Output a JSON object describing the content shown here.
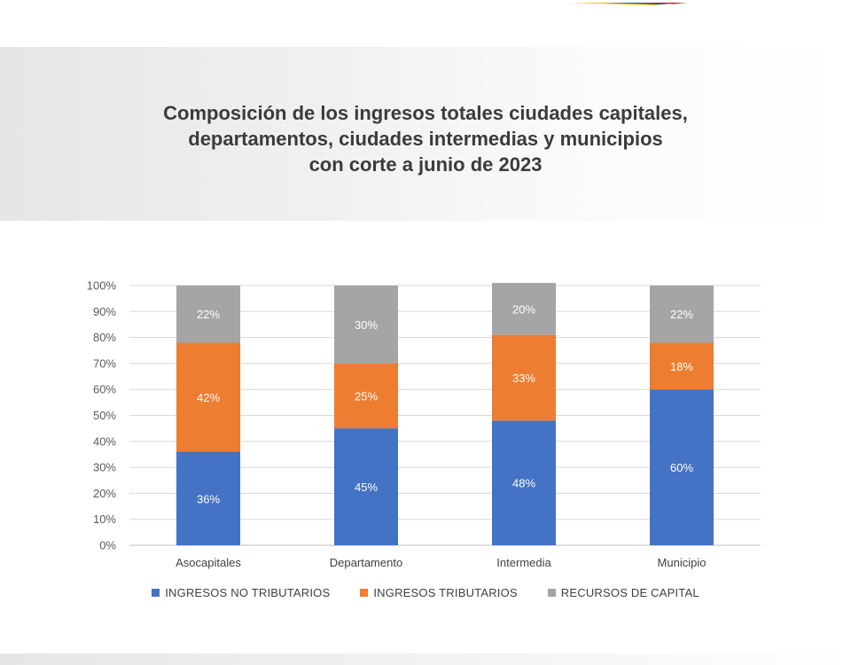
{
  "chart_data": {
    "type": "bar",
    "stacked": true,
    "title_lines": [
      "Composición de los ingresos totales ciudades capitales,",
      "departamentos, ciudades intermedias y municipios",
      "con corte a junio de 2023"
    ],
    "categories": [
      "Asocapitales",
      "Departamento",
      "Intermedia",
      "Municipio"
    ],
    "series": [
      {
        "name": "INGRESOS NO TRIBUTARIOS",
        "color": "#4472c4",
        "values": [
          36,
          45,
          48,
          60
        ],
        "labels": [
          "36%",
          "45%",
          "48%",
          "60%"
        ]
      },
      {
        "name": "INGRESOS TRIBUTARIOS",
        "color": "#ed7d31",
        "values": [
          42,
          25,
          33,
          18
        ],
        "labels": [
          "42%",
          "25%",
          "33%",
          "18%"
        ]
      },
      {
        "name": "RECURSOS DE CAPITAL",
        "color": "#a5a5a5",
        "values": [
          22,
          30,
          20,
          22
        ],
        "labels": [
          "22%",
          "30%",
          "20%",
          "22%"
        ]
      }
    ],
    "ylim": [
      0,
      100
    ],
    "y_ticks": [
      "0%",
      "10%",
      "20%",
      "30%",
      "40%",
      "50%",
      "60%",
      "70%",
      "80%",
      "90%",
      "100%"
    ],
    "grid": true,
    "legend_position": "bottom"
  }
}
